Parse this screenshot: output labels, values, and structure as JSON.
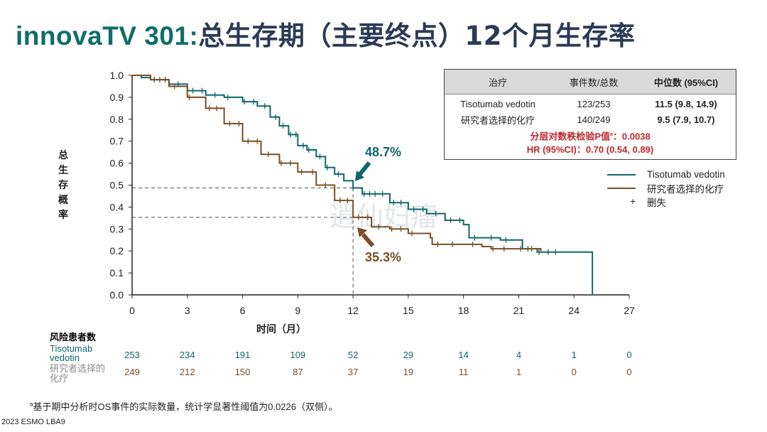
{
  "title": {
    "en": "innovaTV 301:",
    "zh": "总生存期（主要终点）12个月生存率"
  },
  "colors": {
    "tv": "#10676a",
    "chemo": "#7b4f25",
    "title_en": "#0f6d6a",
    "red": "#c0262d"
  },
  "stats_table": {
    "headers": [
      "治疗",
      "事件数/总数",
      "中位数 (95%CI)"
    ],
    "rows": [
      {
        "treatment": "Tisotumab vedotin",
        "events": "123/253",
        "median": "11.5 (9.8, 14.9)"
      },
      {
        "treatment": "研究者选择的化疗",
        "events": "140/249",
        "median": "9.5 (7.9, 10.7)"
      }
    ],
    "p_value_label": "分层对数秩检验P值",
    "p_value_sup": "a",
    "p_value": "：0.0038",
    "hr": "HR (95%CI)：0.70 (0.54, 0.89)"
  },
  "legend": {
    "tv": "Tisotumab vedotin",
    "chemo": "研究者选择的化疗",
    "censor_symbol": "+",
    "censor": "删失"
  },
  "watermark": "逍仙妇瘤",
  "chart_data": {
    "type": "line",
    "title": "",
    "xlabel": "时间（月）",
    "ylabel": "总生存概率",
    "xlim": [
      0,
      27
    ],
    "ylim": [
      0,
      1.0
    ],
    "xticks": [
      0,
      3,
      6,
      9,
      12,
      15,
      18,
      21,
      24,
      27
    ],
    "yticks": [
      "0.0",
      "0.1",
      "0.2",
      "0.3",
      "0.4",
      "0.5",
      "0.6",
      "0.7",
      "0.8",
      "0.9",
      "1.0"
    ],
    "series": [
      {
        "name": "Tisotumab vedotin",
        "key": "tv",
        "points": [
          [
            0,
            1.0
          ],
          [
            0.5,
            0.99
          ],
          [
            1,
            0.98
          ],
          [
            2,
            0.96
          ],
          [
            3,
            0.93
          ],
          [
            4,
            0.91
          ],
          [
            5,
            0.9
          ],
          [
            6,
            0.88
          ],
          [
            6.8,
            0.86
          ],
          [
            7.5,
            0.81
          ],
          [
            8,
            0.77
          ],
          [
            8.5,
            0.73
          ],
          [
            9,
            0.68
          ],
          [
            9.5,
            0.66
          ],
          [
            10,
            0.63
          ],
          [
            10.5,
            0.58
          ],
          [
            11,
            0.55
          ],
          [
            11.5,
            0.52
          ],
          [
            12,
            0.487
          ],
          [
            12.5,
            0.46
          ],
          [
            13.5,
            0.46
          ],
          [
            14,
            0.42
          ],
          [
            15,
            0.39
          ],
          [
            16,
            0.37
          ],
          [
            17,
            0.34
          ],
          [
            18,
            0.32
          ],
          [
            18.3,
            0.26
          ],
          [
            20,
            0.25
          ],
          [
            21,
            0.25
          ],
          [
            21.2,
            0.21
          ],
          [
            22,
            0.195
          ],
          [
            25,
            0.195
          ],
          [
            25,
            0.0
          ]
        ],
        "censors": [
          1.2,
          1.8,
          2.5,
          3.3,
          3.8,
          4.5,
          5.2,
          6.1,
          6.6,
          7.2,
          7.8,
          8.2,
          8.6,
          8.9,
          9.3,
          9.6,
          10.2,
          10.6,
          11.2,
          12.0,
          12.6,
          12.9,
          13.2,
          13.6,
          14.2,
          14.6,
          15.3,
          15.8,
          16.5,
          17.3,
          17.8,
          18.6,
          19.5,
          20.3,
          21.5,
          22.1,
          22.6,
          23.0
        ]
      },
      {
        "name": "研究者选择的化疗",
        "key": "chemo",
        "points": [
          [
            0,
            1.0
          ],
          [
            1,
            0.98
          ],
          [
            2,
            0.95
          ],
          [
            3,
            0.9
          ],
          [
            4,
            0.85
          ],
          [
            5,
            0.78
          ],
          [
            6,
            0.7
          ],
          [
            7,
            0.64
          ],
          [
            8,
            0.6
          ],
          [
            9,
            0.56
          ],
          [
            10,
            0.5
          ],
          [
            11,
            0.43
          ],
          [
            12,
            0.353
          ],
          [
            13,
            0.31
          ],
          [
            14,
            0.3
          ],
          [
            15,
            0.28
          ],
          [
            16.2,
            0.26
          ],
          [
            16.3,
            0.23
          ],
          [
            18,
            0.23
          ],
          [
            19,
            0.22
          ],
          [
            19.5,
            0.21
          ],
          [
            22.2,
            0.2
          ]
        ],
        "censors": [
          1.5,
          2.3,
          3.1,
          4.2,
          4.6,
          5.3,
          5.8,
          6.3,
          6.8,
          7.4,
          8.1,
          8.6,
          9.2,
          9.8,
          10.5,
          11.3,
          11.7,
          12.3,
          12.8,
          13.4,
          14.1,
          14.6,
          15.2,
          16.6,
          17.4,
          18.5,
          19.6,
          20.2,
          21.1,
          21.7
        ]
      }
    ],
    "reference_lines": {
      "x": 12,
      "y_tv": 0.487,
      "y_chemo": 0.353
    },
    "annotations": [
      {
        "text": "48.7%",
        "series": "tv"
      },
      {
        "text": "35.3%",
        "series": "chemo"
      }
    ]
  },
  "risk_table": {
    "title": "风险患者数",
    "rows": [
      {
        "label": "Tisotumab vedotin",
        "key": "tv",
        "values": [
          "253",
          "234",
          "191",
          "109",
          "52",
          "29",
          "14",
          "4",
          "1",
          "0"
        ]
      },
      {
        "label": "研究者选择的化疗",
        "key": "chemo",
        "values": [
          "249",
          "212",
          "150",
          "87",
          "37",
          "19",
          "11",
          "1",
          "0",
          "0"
        ]
      }
    ]
  },
  "footnote": {
    "sup": "a",
    "text": "基于期中分析时OS事件的实际数量，统计学显著性阈值为0.0226（双侧）。"
  },
  "source": "2023 ESMO LBA9"
}
